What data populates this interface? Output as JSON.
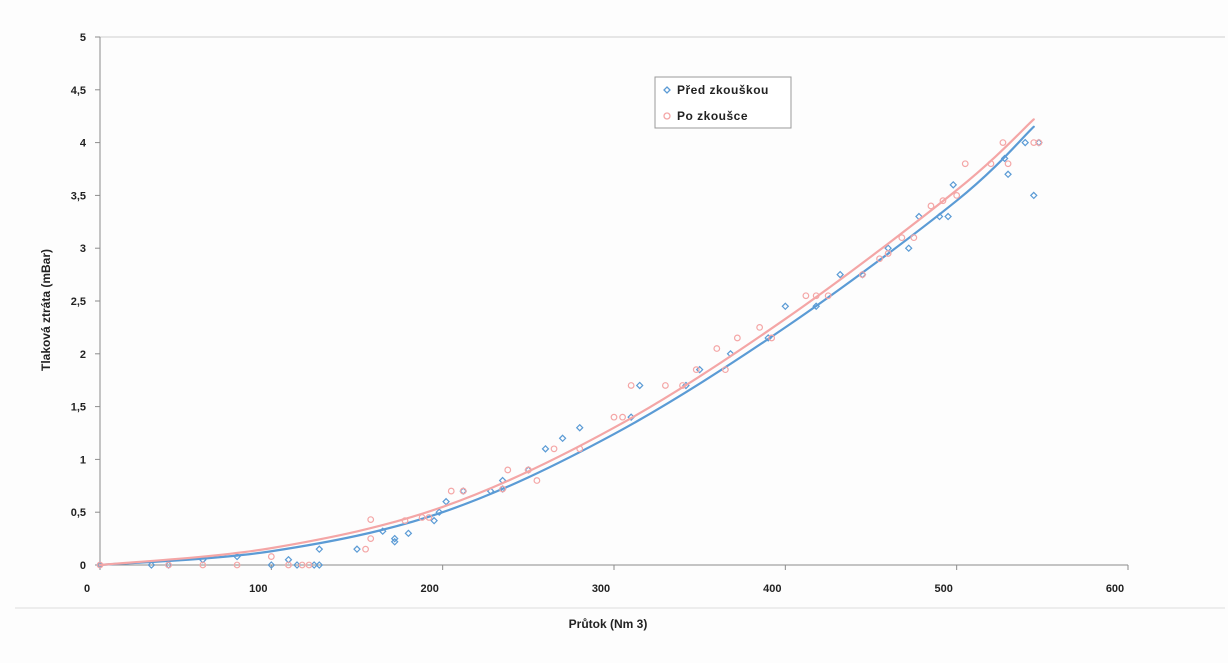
{
  "chart_data": {
    "type": "scatter",
    "xlabel": "Průtok (Nm 3)",
    "ylabel": "Tlaková ztráta (mBar)",
    "xlim": [
      0,
      600
    ],
    "ylim": [
      0,
      5
    ],
    "x_ticks": [
      0,
      100,
      200,
      300,
      400,
      500,
      600
    ],
    "x_tick_labels": [
      "0",
      "100",
      "200",
      "300",
      "400",
      "500",
      "600"
    ],
    "y_ticks": [
      0,
      0.5,
      1,
      1.5,
      2,
      2.5,
      3,
      3.5,
      4,
      4.5,
      5
    ],
    "y_tick_labels": [
      "0",
      "0,5",
      "1",
      "1,5",
      "2",
      "2,5",
      "3",
      "3,5",
      "4",
      "4,5",
      "5"
    ],
    "grid": false,
    "legend_position": "top-right",
    "series": [
      {
        "name": "Před zkouškou",
        "color": "#5b9bd5",
        "marker": "diamond",
        "trendline": "quadratic",
        "trend_points": [
          [
            0,
            0
          ],
          [
            100,
            0.13
          ],
          [
            200,
            0.5
          ],
          [
            300,
            1.24
          ],
          [
            400,
            2.25
          ],
          [
            500,
            3.45
          ],
          [
            545,
            4.15
          ]
        ],
        "points": [
          [
            0,
            0
          ],
          [
            30,
            0
          ],
          [
            40,
            0
          ],
          [
            60,
            0.05
          ],
          [
            80,
            0.08
          ],
          [
            100,
            0
          ],
          [
            110,
            0.05
          ],
          [
            115,
            0
          ],
          [
            125,
            0
          ],
          [
            128,
            0
          ],
          [
            128,
            0.15
          ],
          [
            150,
            0.15
          ],
          [
            165,
            0.32
          ],
          [
            172,
            0.25
          ],
          [
            172,
            0.22
          ],
          [
            180,
            0.3
          ],
          [
            195,
            0.42
          ],
          [
            198,
            0.5
          ],
          [
            202,
            0.6
          ],
          [
            212,
            0.7
          ],
          [
            228,
            0.7
          ],
          [
            235,
            0.72
          ],
          [
            235,
            0.8
          ],
          [
            250,
            0.9
          ],
          [
            260,
            1.1
          ],
          [
            270,
            1.2
          ],
          [
            280,
            1.3
          ],
          [
            310,
            1.4
          ],
          [
            315,
            1.7
          ],
          [
            342,
            1.7
          ],
          [
            350,
            1.85
          ],
          [
            368,
            2.0
          ],
          [
            390,
            2.15
          ],
          [
            400,
            2.45
          ],
          [
            418,
            2.45
          ],
          [
            432,
            2.75
          ],
          [
            445,
            2.75
          ],
          [
            460,
            3.0
          ],
          [
            472,
            3.0
          ],
          [
            478,
            3.3
          ],
          [
            490,
            3.3
          ],
          [
            495,
            3.3
          ],
          [
            498,
            3.6
          ],
          [
            528,
            3.85
          ],
          [
            530,
            3.7
          ],
          [
            540,
            4.0
          ],
          [
            545,
            3.5
          ],
          [
            548,
            4.0
          ]
        ]
      },
      {
        "name": "Po zkoušce",
        "color": "#f4a6a6",
        "marker": "circle",
        "trendline": "quadratic",
        "trend_points": [
          [
            0,
            0
          ],
          [
            100,
            0.16
          ],
          [
            200,
            0.55
          ],
          [
            300,
            1.3
          ],
          [
            400,
            2.33
          ],
          [
            500,
            3.55
          ],
          [
            545,
            4.22
          ]
        ],
        "points": [
          [
            0,
            0
          ],
          [
            40,
            0
          ],
          [
            60,
            0
          ],
          [
            80,
            0
          ],
          [
            100,
            0.08
          ],
          [
            110,
            0
          ],
          [
            118,
            0
          ],
          [
            122,
            0
          ],
          [
            155,
            0.15
          ],
          [
            158,
            0.25
          ],
          [
            158,
            0.43
          ],
          [
            178,
            0.42
          ],
          [
            188,
            0.45
          ],
          [
            192,
            0.45
          ],
          [
            205,
            0.7
          ],
          [
            212,
            0.7
          ],
          [
            235,
            0.72
          ],
          [
            238,
            0.9
          ],
          [
            250,
            0.9
          ],
          [
            255,
            0.8
          ],
          [
            265,
            1.1
          ],
          [
            280,
            1.1
          ],
          [
            300,
            1.4
          ],
          [
            305,
            1.4
          ],
          [
            310,
            1.7
          ],
          [
            330,
            1.7
          ],
          [
            340,
            1.7
          ],
          [
            348,
            1.85
          ],
          [
            360,
            2.05
          ],
          [
            365,
            1.85
          ],
          [
            372,
            2.15
          ],
          [
            385,
            2.25
          ],
          [
            392,
            2.15
          ],
          [
            412,
            2.55
          ],
          [
            418,
            2.55
          ],
          [
            425,
            2.55
          ],
          [
            445,
            2.75
          ],
          [
            455,
            2.9
          ],
          [
            460,
            2.95
          ],
          [
            468,
            3.1
          ],
          [
            475,
            3.1
          ],
          [
            485,
            3.4
          ],
          [
            492,
            3.45
          ],
          [
            500,
            3.5
          ],
          [
            505,
            3.8
          ],
          [
            520,
            3.8
          ],
          [
            527,
            4.0
          ],
          [
            530,
            3.8
          ],
          [
            545,
            4.0
          ],
          [
            548,
            4.0
          ]
        ]
      }
    ]
  }
}
